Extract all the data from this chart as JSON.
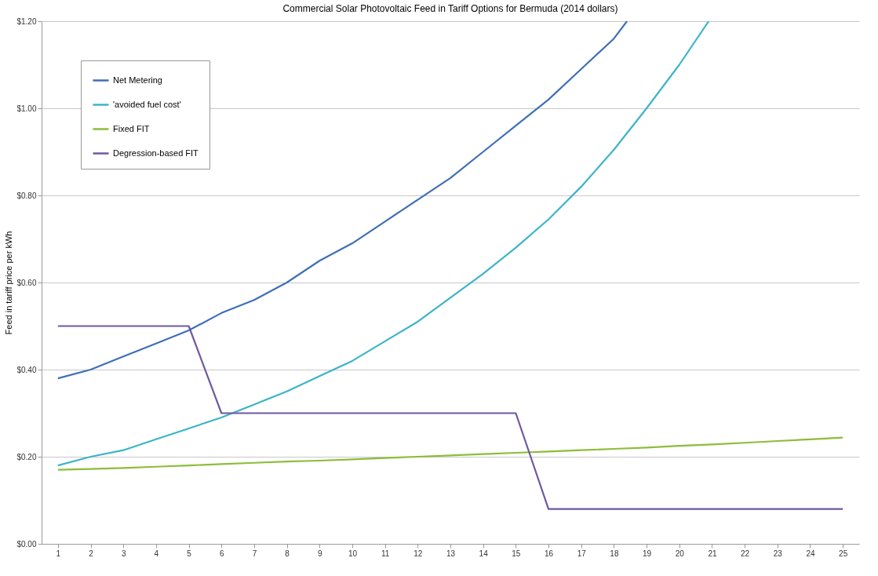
{
  "chart_data": {
    "type": "line",
    "title": "Commercial Solar Photovoltaic Feed in Tariff Options for Bermuda (2014  dollars)",
    "ylabel": "Feed in tariff price per kWh",
    "x": [
      1,
      2,
      3,
      4,
      5,
      6,
      7,
      8,
      9,
      10,
      11,
      12,
      13,
      14,
      15,
      16,
      17,
      18,
      19,
      20,
      21,
      22,
      23,
      24,
      25
    ],
    "series": [
      {
        "name": "Net Metering",
        "color": "#3f6fb5",
        "x": [
          1,
          2,
          3,
          4,
          5,
          6,
          7,
          8,
          9,
          10,
          11,
          12,
          13,
          14,
          15,
          16,
          17,
          18,
          18.4
        ],
        "values": [
          0.38,
          0.4,
          0.43,
          0.46,
          0.49,
          0.53,
          0.56,
          0.6,
          0.65,
          0.69,
          0.74,
          0.79,
          0.84,
          0.9,
          0.96,
          1.02,
          1.09,
          1.16,
          1.2
        ]
      },
      {
        "name": "'avoided fuel cost'",
        "color": "#3cb4c8",
        "x": [
          1,
          2,
          3,
          4,
          5,
          6,
          7,
          8,
          9,
          10,
          11,
          12,
          13,
          14,
          15,
          16,
          17,
          18,
          19,
          20,
          20.9
        ],
        "values": [
          0.18,
          0.2,
          0.215,
          0.24,
          0.265,
          0.29,
          0.32,
          0.35,
          0.385,
          0.42,
          0.465,
          0.51,
          0.565,
          0.62,
          0.68,
          0.745,
          0.82,
          0.905,
          1.0,
          1.1,
          1.2
        ]
      },
      {
        "name": "Fixed FIT",
        "color": "#8cbd3a",
        "values": [
          0.17,
          0.172,
          0.174,
          0.177,
          0.18,
          0.183,
          0.186,
          0.189,
          0.191,
          0.194,
          0.197,
          0.2,
          0.203,
          0.206,
          0.209,
          0.212,
          0.215,
          0.218,
          0.221,
          0.225,
          0.228,
          0.232,
          0.236,
          0.24,
          0.244
        ]
      },
      {
        "name": "Degression-based FIT",
        "color": "#6f58a0",
        "values": [
          0.5,
          0.5,
          0.5,
          0.5,
          0.5,
          0.3,
          0.3,
          0.3,
          0.3,
          0.3,
          0.3,
          0.3,
          0.3,
          0.3,
          0.3,
          0.08,
          0.08,
          0.08,
          0.08,
          0.08,
          0.08,
          0.08,
          0.08,
          0.08,
          0.08
        ]
      }
    ],
    "xlim": [
      0.5,
      25.5
    ],
    "xticks": [
      1,
      2,
      3,
      4,
      5,
      6,
      7,
      8,
      9,
      10,
      11,
      12,
      13,
      14,
      15,
      16,
      17,
      18,
      19,
      20,
      21,
      22,
      23,
      24,
      25
    ],
    "ylim": [
      0,
      1.2
    ],
    "yticks": [
      {
        "value": 0,
        "label": "$0.00"
      },
      {
        "value": 0.2,
        "label": "$0.20"
      },
      {
        "value": 0.4,
        "label": "$0.40"
      },
      {
        "value": 0.6,
        "label": "$0.60"
      },
      {
        "value": 0.8,
        "label": "$0.80"
      },
      {
        "value": 1.0,
        "label": "$1.00"
      },
      {
        "value": 1.2,
        "label": "$1.20"
      }
    ],
    "grid": "y",
    "legend": "top left",
    "marker": "none",
    "line_style": "solid"
  }
}
